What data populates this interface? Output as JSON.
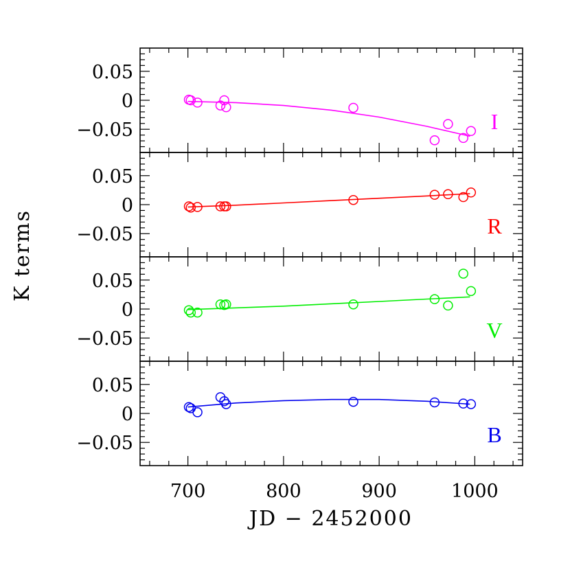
{
  "chart_data": {
    "type": "scatter",
    "xlabel": "JD − 2452000",
    "ylabel": "K terms",
    "xlim": [
      650,
      1050
    ],
    "x_ticks": [
      700,
      800,
      900,
      1000
    ],
    "x_tick_labels": [
      "700",
      "800",
      "900",
      "1000"
    ],
    "ylim": [
      -0.09,
      0.09
    ],
    "y_ticks": [
      0.05,
      0,
      -0.05
    ],
    "y_tick_labels": [
      "0.05",
      "0",
      "−0.05"
    ],
    "grid": false,
    "panels": [
      {
        "name": "I",
        "color": "#ff00ff",
        "points": [
          [
            701,
            0.001
          ],
          [
            703,
            0.0
          ],
          [
            710,
            -0.004
          ],
          [
            734,
            -0.009
          ],
          [
            738,
            0.0
          ],
          [
            740,
            -0.012
          ],
          [
            873,
            -0.013
          ],
          [
            958,
            -0.069
          ],
          [
            972,
            -0.041
          ],
          [
            988,
            -0.065
          ],
          [
            996,
            -0.053
          ]
        ],
        "fit": [
          [
            700,
            -0.002
          ],
          [
            750,
            -0.004
          ],
          [
            800,
            -0.009
          ],
          [
            850,
            -0.017
          ],
          [
            900,
            -0.029
          ],
          [
            950,
            -0.045
          ],
          [
            995,
            -0.062
          ]
        ]
      },
      {
        "name": "R",
        "color": "#ff0000",
        "points": [
          [
            701,
            -0.003
          ],
          [
            703,
            -0.005
          ],
          [
            710,
            -0.004
          ],
          [
            734,
            -0.003
          ],
          [
            738,
            -0.003
          ],
          [
            740,
            -0.003
          ],
          [
            873,
            0.008
          ],
          [
            958,
            0.017
          ],
          [
            972,
            0.018
          ],
          [
            988,
            0.013
          ],
          [
            996,
            0.021
          ]
        ],
        "fit": [
          [
            700,
            -0.004
          ],
          [
            750,
            -0.001
          ],
          [
            800,
            0.003
          ],
          [
            850,
            0.007
          ],
          [
            900,
            0.011
          ],
          [
            950,
            0.015
          ],
          [
            995,
            0.019
          ]
        ]
      },
      {
        "name": "V",
        "color": "#00ee00",
        "points": [
          [
            701,
            -0.002
          ],
          [
            703,
            -0.006
          ],
          [
            710,
            -0.006
          ],
          [
            734,
            0.008
          ],
          [
            738,
            0.007
          ],
          [
            740,
            0.008
          ],
          [
            873,
            0.008
          ],
          [
            958,
            0.017
          ],
          [
            972,
            0.006
          ],
          [
            988,
            0.061
          ],
          [
            996,
            0.031
          ]
        ],
        "fit": [
          [
            700,
            -0.001
          ],
          [
            800,
            0.005
          ],
          [
            900,
            0.013
          ],
          [
            995,
            0.021
          ]
        ]
      },
      {
        "name": "B",
        "color": "#0000ee",
        "points": [
          [
            701,
            0.011
          ],
          [
            703,
            0.009
          ],
          [
            710,
            0.002
          ],
          [
            734,
            0.028
          ],
          [
            738,
            0.021
          ],
          [
            740,
            0.016
          ],
          [
            873,
            0.02
          ],
          [
            958,
            0.019
          ],
          [
            988,
            0.017
          ],
          [
            996,
            0.016
          ]
        ],
        "fit": [
          [
            700,
            0.011
          ],
          [
            750,
            0.018
          ],
          [
            800,
            0.022
          ],
          [
            850,
            0.024
          ],
          [
            900,
            0.024
          ],
          [
            950,
            0.021
          ],
          [
            995,
            0.016
          ]
        ]
      }
    ]
  }
}
